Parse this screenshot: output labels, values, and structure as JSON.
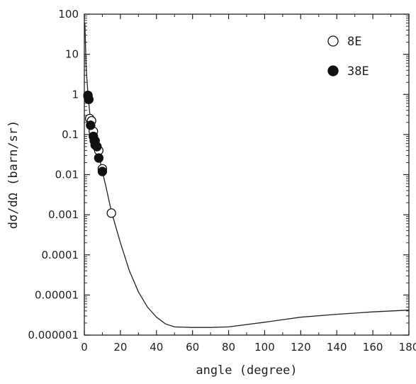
{
  "chart_data": {
    "type": "scatter",
    "title": "",
    "xlabel": "angle (degree)",
    "ylabel": "dσ/dΩ (barn/sr)",
    "xlim": [
      0,
      180
    ],
    "ylim": [
      1e-06,
      100
    ],
    "yscale": "log",
    "grid": false,
    "legend_position": "top-right",
    "x_ticks": [
      0,
      20,
      40,
      60,
      80,
      100,
      120,
      140,
      160,
      180
    ],
    "x_tick_labels": [
      "0",
      "20",
      "40",
      "60",
      "80",
      "100",
      "120",
      "140",
      "160",
      "180"
    ],
    "y_ticks": [
      1e-06,
      1e-05,
      0.0001,
      0.001,
      0.01,
      0.1,
      1,
      10,
      100
    ],
    "y_tick_labels": [
      "0.000001",
      "0.00001",
      "0.0001",
      "0.001",
      "0.01",
      "0.1",
      "1",
      "10",
      "100"
    ],
    "series": [
      {
        "name": "8E",
        "marker": "open-circle",
        "points": [
          [
            2,
            0.9
          ],
          [
            3,
            0.25
          ],
          [
            4,
            0.22
          ],
          [
            5,
            0.12
          ],
          [
            6,
            0.07
          ],
          [
            7,
            0.05
          ],
          [
            8,
            0.04
          ],
          [
            10,
            0.014
          ],
          [
            15,
            0.0011
          ]
        ]
      },
      {
        "name": "38E",
        "marker": "filled-circle",
        "points": [
          [
            2,
            0.95
          ],
          [
            2.5,
            0.75
          ],
          [
            3.5,
            0.17
          ],
          [
            5,
            0.09
          ],
          [
            5.5,
            0.07
          ],
          [
            6,
            0.055
          ],
          [
            7,
            0.05
          ],
          [
            8,
            0.026
          ],
          [
            10,
            0.012
          ]
        ]
      },
      {
        "name": "",
        "marker": "none",
        "style": "line",
        "points": [
          [
            0.3,
            60
          ],
          [
            1,
            5
          ],
          [
            2,
            1.0
          ],
          [
            3,
            0.35
          ],
          [
            4,
            0.18
          ],
          [
            6,
            0.07
          ],
          [
            8,
            0.03
          ],
          [
            10,
            0.012
          ],
          [
            12,
            0.005
          ],
          [
            15,
            0.0012
          ],
          [
            20,
            0.0002
          ],
          [
            25,
            4e-05
          ],
          [
            30,
            1.2e-05
          ],
          [
            35,
            5e-06
          ],
          [
            40,
            2.8e-06
          ],
          [
            45,
            1.9e-06
          ],
          [
            50,
            1.6e-06
          ],
          [
            60,
            1.55e-06
          ],
          [
            70,
            1.55e-06
          ],
          [
            80,
            1.6e-06
          ],
          [
            100,
            2.1e-06
          ],
          [
            120,
            2.8e-06
          ],
          [
            140,
            3.3e-06
          ],
          [
            160,
            3.8e-06
          ],
          [
            180,
            4.2e-06
          ]
        ]
      }
    ]
  }
}
